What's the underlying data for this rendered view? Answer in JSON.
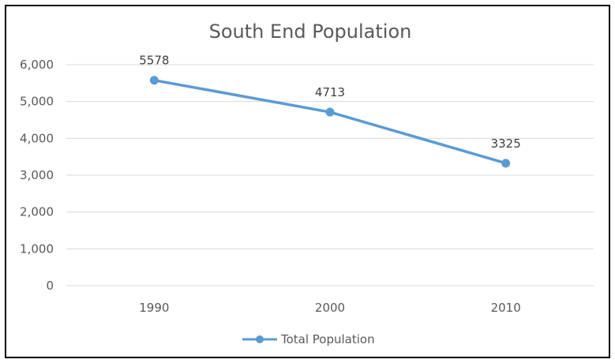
{
  "chart_data": {
    "type": "line",
    "title": "South End Population",
    "xlabel": "",
    "ylabel": "",
    "categories": [
      "1990",
      "2000",
      "2010"
    ],
    "series": [
      {
        "name": "Total Population",
        "values": [
          5578,
          4713,
          3325
        ],
        "data_labels": [
          "5578",
          "4713",
          "3325"
        ],
        "color": "#5b9bd5"
      }
    ],
    "ylim": [
      0,
      6000
    ],
    "y_ticks": [
      0,
      1000,
      2000,
      3000,
      4000,
      5000,
      6000
    ],
    "y_tick_labels": [
      "0",
      "1,000",
      "2,000",
      "3,000",
      "4,000",
      "5,000",
      "6,000"
    ],
    "grid": true,
    "legend_position": "bottom",
    "colors": {
      "gridline": "#d9d9d9",
      "text": "#595959",
      "border": "#000000"
    }
  }
}
